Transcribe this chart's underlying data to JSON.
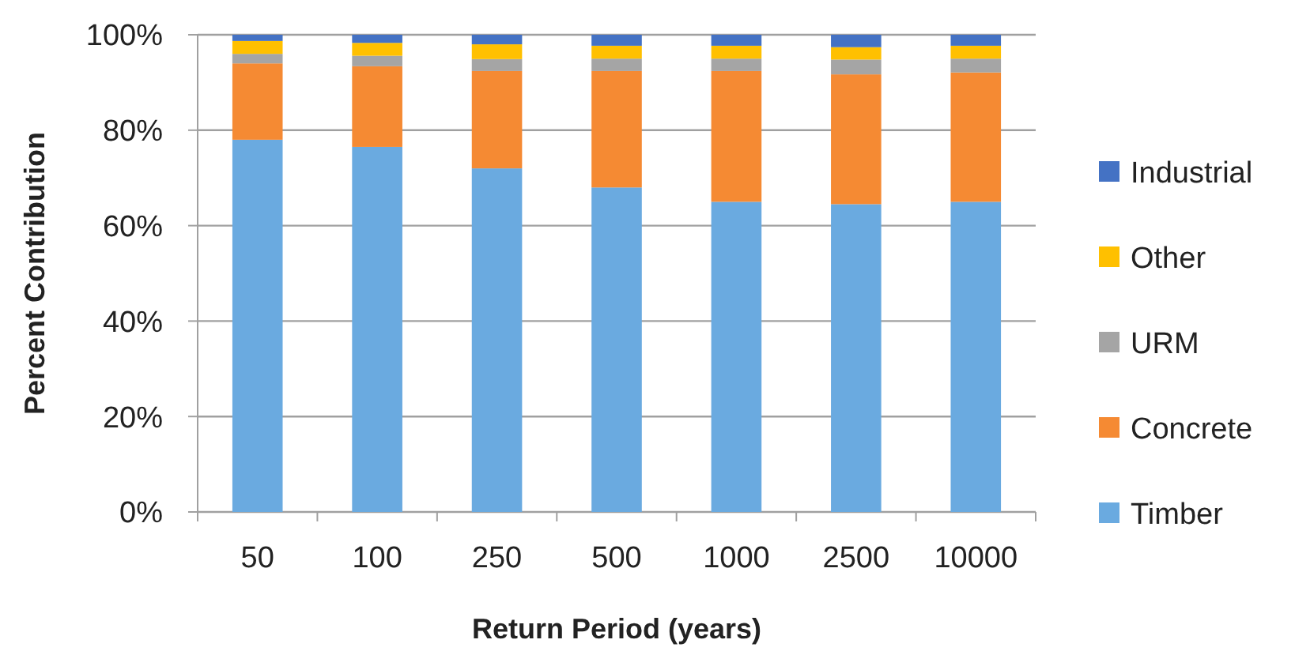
{
  "chart_data": {
    "type": "bar",
    "stacked": true,
    "xlabel": "Return Period (years)",
    "ylabel": "Percent Contribution",
    "categories": [
      "50",
      "100",
      "250",
      "500",
      "1000",
      "2500",
      "10000"
    ],
    "series": [
      {
        "name": "Timber",
        "color": "#6aaae0",
        "values": [
          78,
          76.5,
          72,
          68,
          65,
          64.5,
          65
        ]
      },
      {
        "name": "Concrete",
        "color": "#f58a33",
        "values": [
          16,
          16.9,
          20.4,
          24.4,
          27.4,
          27.2,
          27.1
        ]
      },
      {
        "name": "URM",
        "color": "#a5a5a5",
        "values": [
          2,
          2.2,
          2.5,
          2.6,
          2.6,
          3.1,
          2.9
        ]
      },
      {
        "name": "Other",
        "color": "#ffc000",
        "values": [
          2.7,
          2.7,
          3.1,
          2.7,
          2.7,
          2.6,
          2.7
        ]
      },
      {
        "name": "Industrial",
        "color": "#4472c4",
        "values": [
          1.3,
          1.7,
          2,
          2.3,
          2.3,
          2.6,
          2.3
        ]
      }
    ],
    "ylim": [
      0,
      100
    ],
    "yticks": [
      {
        "value": 0,
        "label": "0%"
      },
      {
        "value": 20,
        "label": "20%"
      },
      {
        "value": 40,
        "label": "40%"
      },
      {
        "value": 60,
        "label": "60%"
      },
      {
        "value": 80,
        "label": "80%"
      },
      {
        "value": 100,
        "label": "100%"
      }
    ],
    "grid": "y",
    "legend": "right"
  }
}
